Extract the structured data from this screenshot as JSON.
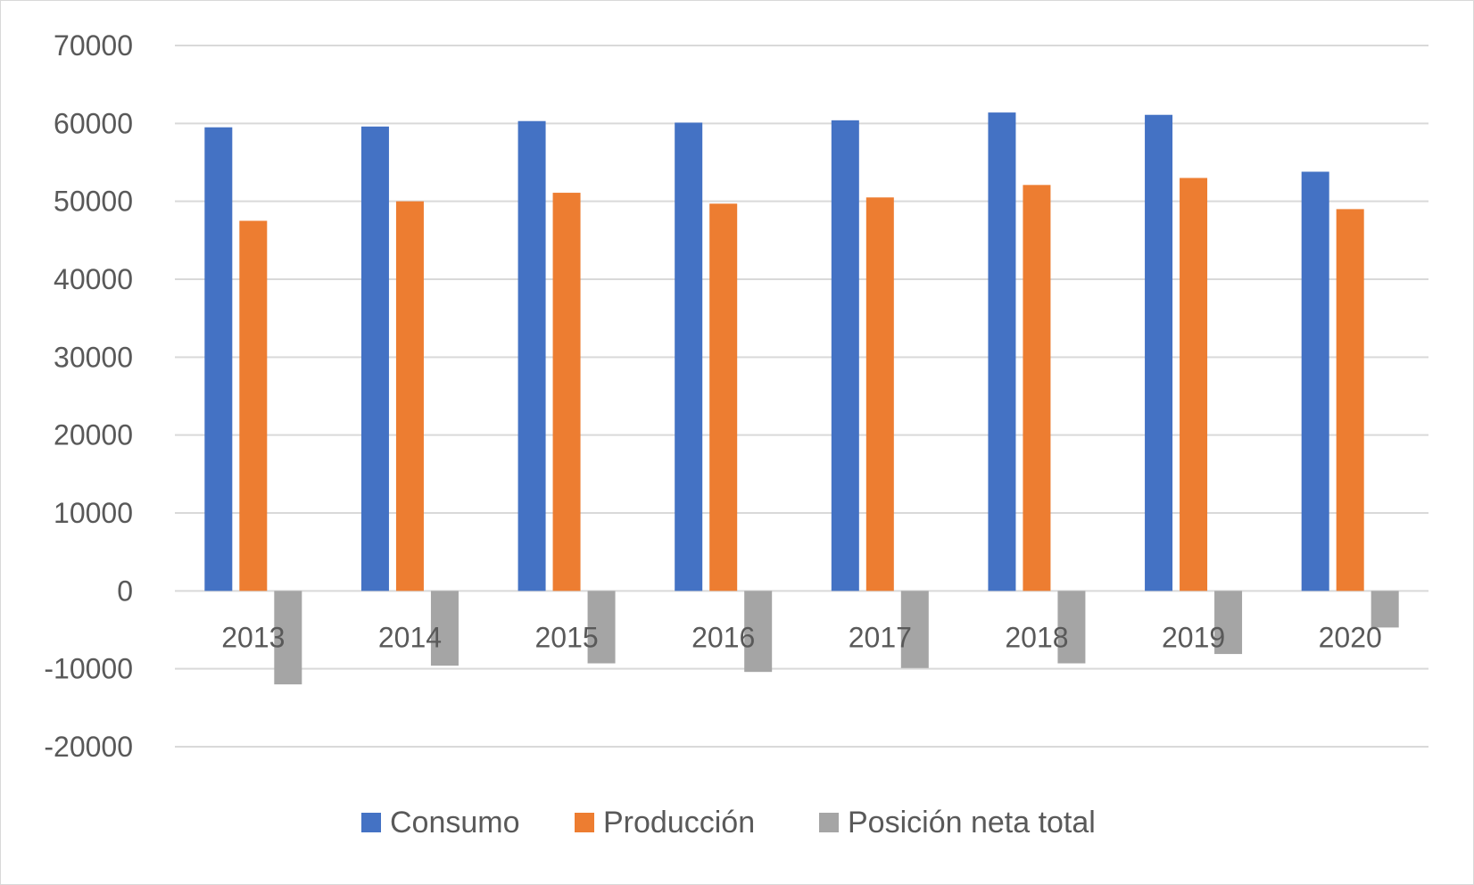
{
  "chart_data": {
    "type": "bar",
    "title": "",
    "xlabel": "",
    "ylabel": "",
    "categories": [
      "2013",
      "2014",
      "2015",
      "2016",
      "2017",
      "2018",
      "2019",
      "2020"
    ],
    "series": [
      {
        "name": "Consumo",
        "color": "#4472C4",
        "values": [
          59500,
          59600,
          60300,
          60100,
          60400,
          61400,
          61100,
          53800
        ]
      },
      {
        "name": "Producción",
        "color": "#ED7D31",
        "values": [
          47500,
          50000,
          51100,
          49700,
          50500,
          52100,
          53000,
          49000
        ]
      },
      {
        "name": "Posición neta total",
        "color": "#A5A5A5",
        "values": [
          -12000,
          -9600,
          -9300,
          -10400,
          -9900,
          -9300,
          -8100,
          -4700
        ]
      }
    ],
    "ylim": [
      -20000,
      70000
    ],
    "yticks": [
      "70000",
      "60000",
      "50000",
      "40000",
      "30000",
      "20000",
      "10000",
      "0",
      "-10000",
      "-20000"
    ],
    "grid": true,
    "legend_position": "bottom"
  }
}
